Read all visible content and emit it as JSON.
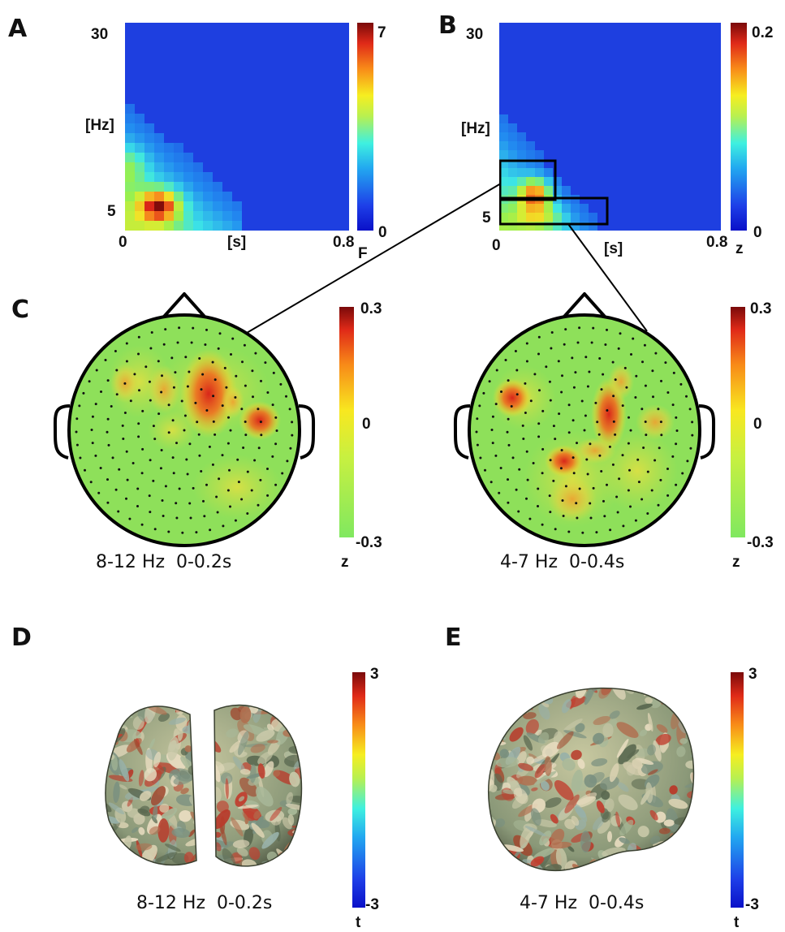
{
  "panels": {
    "A": {
      "label": "A",
      "y_ticks": [
        "30",
        "[Hz]",
        "5"
      ],
      "x_ticks": [
        "0",
        "[s]",
        "0.8"
      ],
      "colorbar": {
        "max": "7",
        "min": "0",
        "unit": "F"
      }
    },
    "B": {
      "label": "B",
      "y_ticks": [
        "30",
        "[Hz]",
        "5"
      ],
      "x_ticks": [
        "0",
        "[s]",
        "0.8"
      ],
      "colorbar": {
        "max": "0.2",
        "min": "0",
        "unit": "z"
      }
    },
    "C": {
      "label": "C",
      "maps": [
        {
          "caption": "8-12 Hz  0-0.2s",
          "colorbar": {
            "max": "0.3",
            "mid": "0",
            "min": "-0.3",
            "unit": "z"
          }
        },
        {
          "caption": "4-7 Hz  0-0.4s",
          "colorbar": {
            "max": "0.3",
            "mid": "0",
            "min": "-0.3",
            "unit": "z"
          }
        }
      ]
    },
    "D": {
      "label": "D",
      "caption": "8-12 Hz  0-0.2s",
      "colorbar": {
        "max": "3",
        "min": "-3",
        "unit": "t"
      }
    },
    "E": {
      "label": "E",
      "caption": "4-7 Hz  0-0.4s",
      "colorbar": {
        "max": "3",
        "min": "-3",
        "unit": "t"
      }
    }
  },
  "colors": {
    "jet_background": "#1e3fe0",
    "scalp_base": "#8ee05a",
    "hot": "#d8261a",
    "outline": "#000000"
  }
}
